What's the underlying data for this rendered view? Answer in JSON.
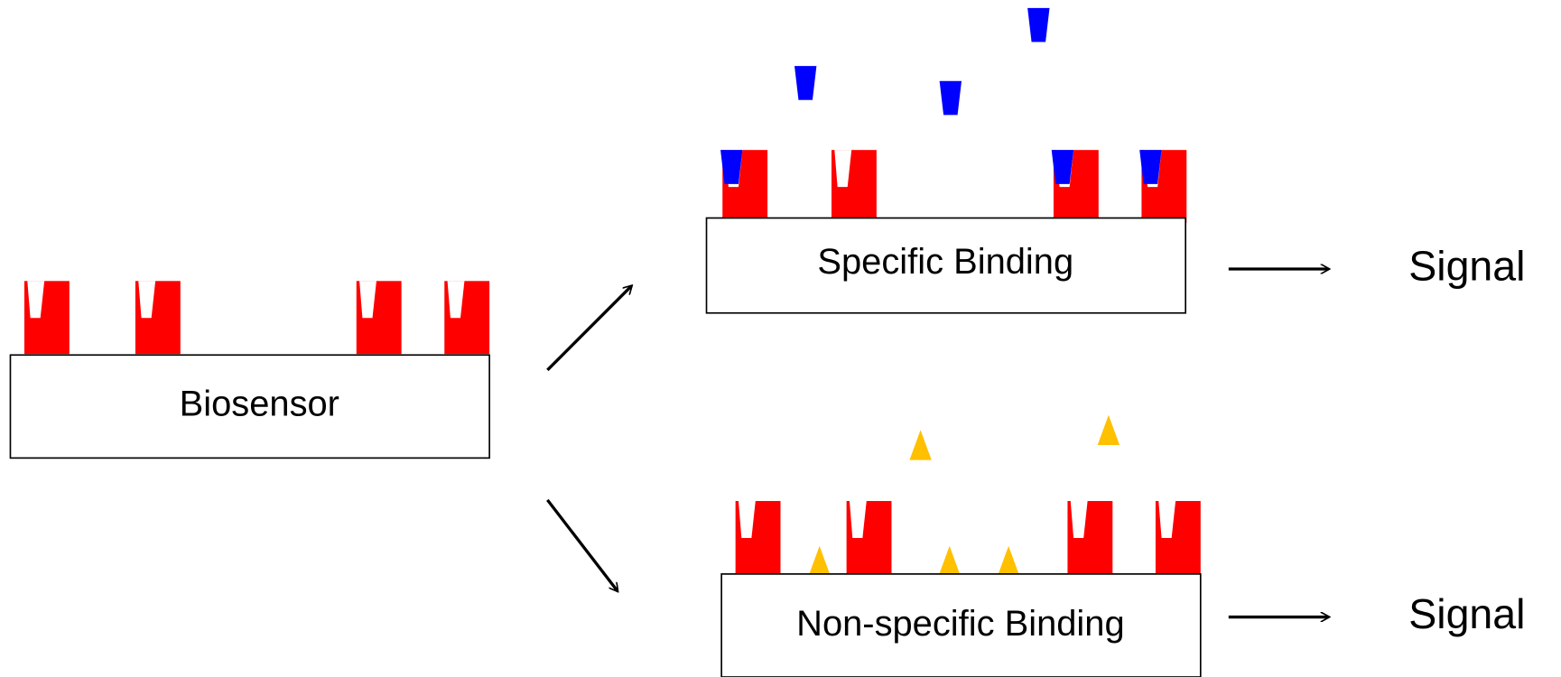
{
  "biosensor": {
    "label": "Biosensor"
  },
  "specific": {
    "label": "Specific Binding",
    "result": "Signal"
  },
  "nonspecific": {
    "label": "Non-specific Binding",
    "result": "Signal"
  }
}
